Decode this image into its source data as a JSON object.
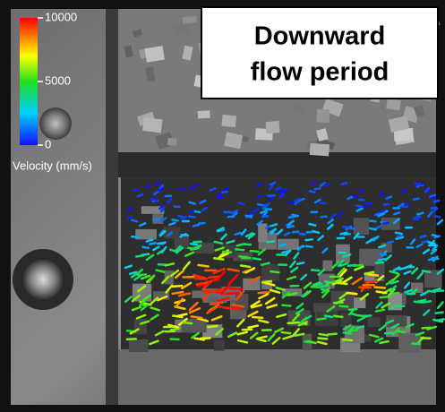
{
  "title": {
    "lines": [
      "Downward",
      "flow period"
    ]
  },
  "colorbar": {
    "label": "Velocity (mm/s)",
    "lim": [
      0,
      10000
    ],
    "ticks": [
      0,
      5000,
      10000
    ]
  }
}
